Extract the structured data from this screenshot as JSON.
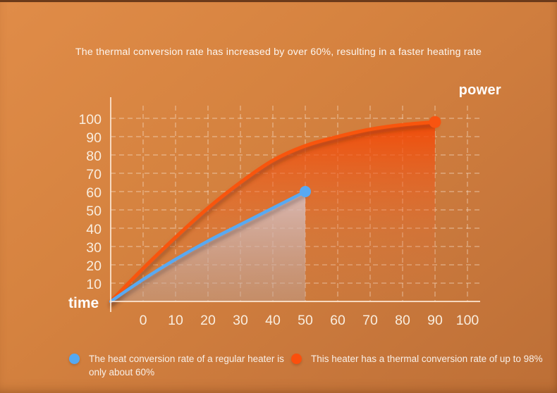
{
  "headline": "The thermal conversion rate has increased by over 60%, resulting in a faster heating rate",
  "chart_data": {
    "type": "line",
    "title": "",
    "xlabel": "time",
    "ylabel": "power",
    "x_ticks": [
      0,
      10,
      20,
      30,
      40,
      50,
      60,
      70,
      80,
      90,
      100
    ],
    "y_ticks": [
      10,
      20,
      30,
      40,
      50,
      60,
      70,
      80,
      90,
      100
    ],
    "xlim": [
      -10,
      100
    ],
    "ylim": [
      0,
      100
    ],
    "grid": "dashed",
    "series": [
      {
        "name": "regular-heater",
        "label": "Regular heater (about 60%)",
        "color": "#58a9f2",
        "end_point": {
          "x": 50,
          "y": 60
        },
        "points": [
          [
            -10,
            0
          ],
          [
            0,
            12
          ],
          [
            10,
            23
          ],
          [
            20,
            33
          ],
          [
            30,
            42
          ],
          [
            40,
            51
          ],
          [
            50,
            60
          ]
        ],
        "z": 1,
        "fill_stops": [
          [
            "0%",
            "rgba(215,200,206,0.82)"
          ],
          [
            "55%",
            "rgba(200,178,176,0.62)"
          ],
          [
            "100%",
            "rgba(188,162,152,0.45)"
          ]
        ],
        "shadow": "rgba(80,55,55,0.45)"
      },
      {
        "name": "this-heater",
        "label": "This heater (up to 98%)",
        "color": "#f85410",
        "end_point": {
          "x": 90,
          "y": 98
        },
        "points": [
          [
            -10,
            0
          ],
          [
            0,
            18
          ],
          [
            10,
            35
          ],
          [
            20,
            51
          ],
          [
            30,
            65
          ],
          [
            40,
            77
          ],
          [
            50,
            85
          ],
          [
            60,
            90
          ],
          [
            70,
            94
          ],
          [
            80,
            96.5
          ],
          [
            90,
            98
          ]
        ],
        "z": 0,
        "fill_stops": [
          [
            "0%",
            "rgba(243,73,6,0.95)"
          ],
          [
            "30%",
            "rgba(240,85,22,0.55)"
          ],
          [
            "62%",
            "rgba(236,100,40,0.22)"
          ],
          [
            "100%",
            "rgba(236,110,55,0)"
          ]
        ],
        "shadow": "rgba(110,45,12,0.5)"
      }
    ]
  },
  "legend": [
    {
      "color": "#55a9f1",
      "text": "The heat conversion rate of a regular heater is only about 60%"
    },
    {
      "color": "#fb4f0c",
      "text": "This heater has a thermal conversion rate of up to 98%"
    }
  ],
  "colors": {
    "background_top": "#e08c48",
    "background_bottom": "#bd6f36",
    "top_strip": "#6b3a1a",
    "grid": "rgba(252,236,220,0.5)",
    "axis": "rgba(252,230,210,0.88)",
    "tick_text": "#f9edde",
    "headline_text": "#fdf5ee"
  }
}
